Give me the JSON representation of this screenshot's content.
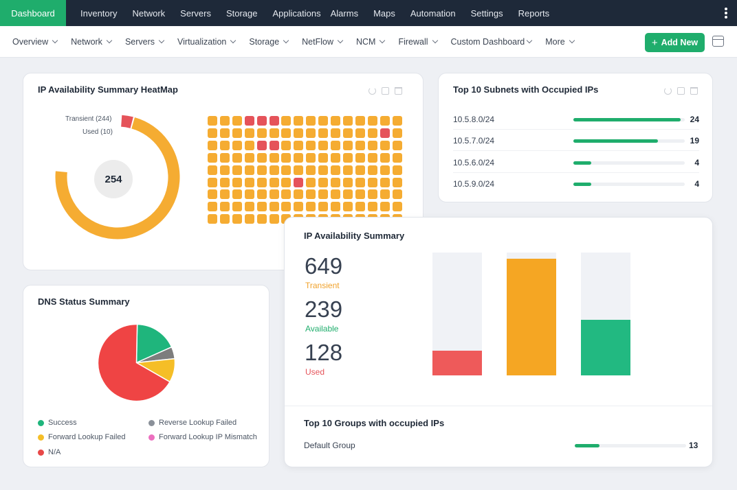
{
  "topnav": {
    "active": "Dashboard",
    "tabs": [
      "Inventory",
      "Network",
      "Servers",
      "Storage",
      "Applications",
      "Alarms",
      "Maps",
      "Automation",
      "Settings",
      "Reports"
    ]
  },
  "subnav": {
    "items": [
      "Overview",
      "Network",
      "Servers",
      "Virtualization",
      "Storage",
      "NetFlow",
      "NCM",
      "Firewall",
      "Custom Dashboard",
      "More"
    ],
    "add_new": "Add New"
  },
  "heatmap_card": {
    "title": "IP Availability Summary HeatMap",
    "center_value": "254",
    "legend": {
      "transient": "Transient (244)",
      "used": "Used (10)"
    },
    "transient": 244,
    "used": 10,
    "colors": {
      "transient": "#f5ac32",
      "used": "#e5535a"
    },
    "grid": {
      "rows": 9,
      "cols": 16,
      "used_cells": [
        [
          0,
          3
        ],
        [
          0,
          4
        ],
        [
          0,
          5
        ],
        [
          1,
          14
        ],
        [
          2,
          4
        ],
        [
          2,
          5
        ],
        [
          5,
          7
        ]
      ]
    }
  },
  "subnets_card": {
    "title": "Top 10 Subnets with Occupied IPs",
    "max": 25,
    "rows": [
      {
        "subnet": "10.5.8.0/24",
        "value": "24"
      },
      {
        "subnet": "10.5.7.0/24",
        "value": "19"
      },
      {
        "subnet": "10.5.6.0/24",
        "value": "4"
      },
      {
        "subnet": "10.5.9.0/24",
        "value": "4"
      }
    ]
  },
  "summary_card": {
    "title": "IP Availability Summary",
    "stats": [
      {
        "value": "649",
        "label": "Transient",
        "color": "#f0a12a"
      },
      {
        "value": "239",
        "label": "Available",
        "color": "#1fad6c"
      },
      {
        "value": "128",
        "label": "Used",
        "color": "#e5535a"
      }
    ],
    "bars": [
      {
        "fraction": 0.2,
        "color": "#ee5a5a"
      },
      {
        "fraction": 0.95,
        "color": "#f5a623"
      },
      {
        "fraction": 0.45,
        "color": "#22b981"
      }
    ]
  },
  "groups_card": {
    "title": "Top 10 Groups with occupied IPs",
    "rows": [
      {
        "group": "Default Group",
        "value": "13",
        "fraction": 0.22
      }
    ]
  },
  "dns_card": {
    "title": "DNS Status Summary",
    "legend": [
      {
        "label": "Success",
        "color": "#1fb57c"
      },
      {
        "label": "Reverse Lookup Failed",
        "color": "#8a9099"
      },
      {
        "label": "Forward Lookup Failed",
        "color": "#f5be27"
      },
      {
        "label": "Forward Lookup IP Mismatch",
        "color": "#ec6fbf"
      },
      {
        "label": "N/A",
        "color": "#e84848"
      }
    ],
    "slices": [
      {
        "label": "Success",
        "value": 18,
        "color": "#1fb57c"
      },
      {
        "label": "Reverse Lookup Failed",
        "value": 5,
        "color": "#7d7d7d"
      },
      {
        "label": "Forward Lookup Failed",
        "value": 10,
        "color": "#f5be27"
      },
      {
        "label": "N/A",
        "value": 67,
        "color": "#ef4444"
      }
    ]
  }
}
